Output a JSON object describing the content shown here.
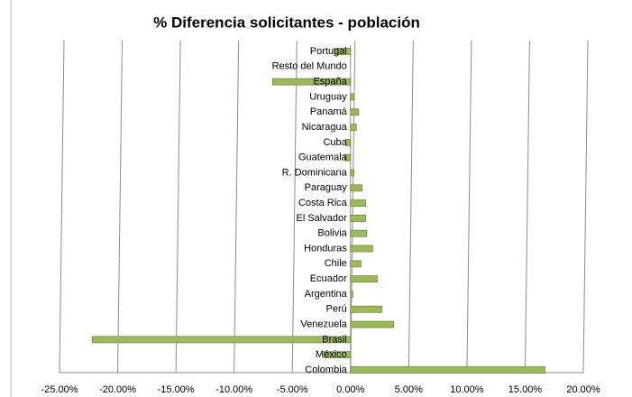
{
  "chart_data": {
    "type": "hbar",
    "title": "% Diferencia solicitantes - población",
    "categories": [
      "Portugal",
      "Resto del Mundo",
      "España",
      "Uruguay",
      "Panamá",
      "Nicaragua",
      "Cuba",
      "Guatemala",
      "R. Dominicana",
      "Paraguay",
      "Costa Rica",
      "El Salvador",
      "Bolivia",
      "Honduras",
      "Chile",
      "Ecuador",
      "Argentina",
      "Perú",
      "Venezuela",
      "Brasil",
      "México",
      "Colombia"
    ],
    "values": [
      -1.4,
      0,
      -6.7,
      0.3,
      0.7,
      0.5,
      -0.4,
      -0.5,
      0.3,
      1.0,
      1.3,
      1.3,
      1.4,
      1.9,
      0.9,
      2.3,
      0.2,
      2.7,
      3.7,
      -22.2,
      -2.3,
      16.7
    ],
    "color": "#9bbb59",
    "xlim": [
      -25,
      20
    ],
    "xticks": [
      {
        "value": -25,
        "label": "-25.00%"
      },
      {
        "value": -20,
        "label": "-20.00%"
      },
      {
        "value": -15,
        "label": "-15.00%"
      },
      {
        "value": -10,
        "label": "-10.00%"
      },
      {
        "value": -5,
        "label": "-5.00%"
      },
      {
        "value": 0,
        "label": "0.00%"
      },
      {
        "value": 5,
        "label": "5.00%"
      },
      {
        "value": 10,
        "label": "10.00%"
      },
      {
        "value": 15,
        "label": "15.00%"
      },
      {
        "value": 20,
        "label": "20.00%"
      }
    ],
    "grid": true
  }
}
